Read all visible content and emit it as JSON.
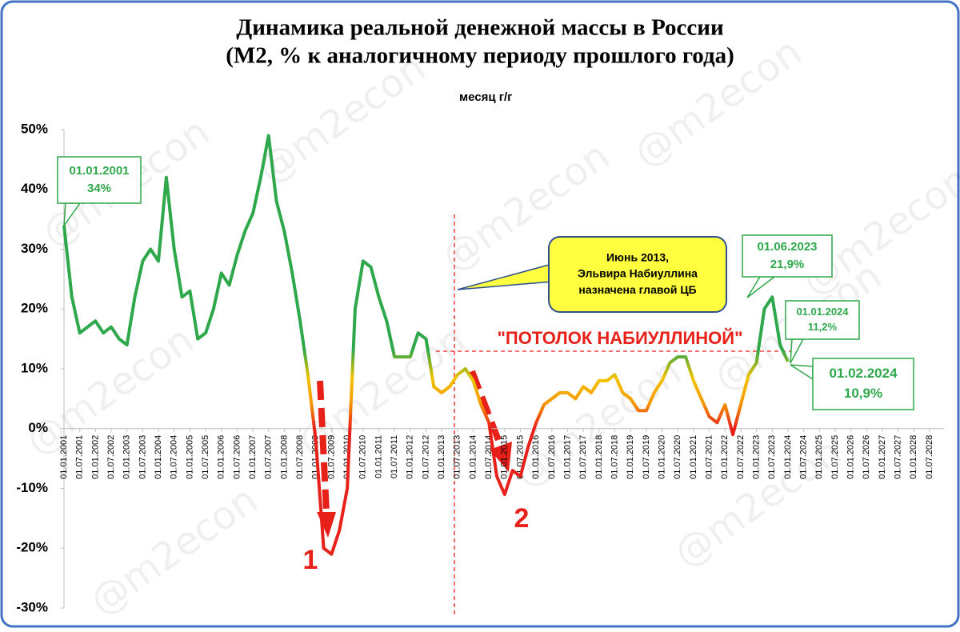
{
  "chart_data": {
    "type": "line",
    "title": [
      "Динамика реальной денежной массы в России",
      "(М2, % к аналогичному периоду прошлого года)"
    ],
    "watermark": "@m2econ",
    "categories": [
      "01.01.2001",
      null,
      "01.07.2001",
      null,
      "01.01.2002",
      null,
      "01.07.2002",
      null,
      "01.01.2003",
      null,
      "01.07.2003",
      null,
      "01.01.2004",
      null,
      "01.07.2004",
      null,
      "01.01.2005",
      null,
      "01.07.2005",
      null,
      "01.01.2006",
      null,
      "01.07.2006",
      null,
      "01.01.2007",
      null,
      "01.07.2007",
      null,
      "01.01.2008",
      null,
      "01.07.2008",
      null,
      "01.01.2009",
      null,
      "01.07.2009",
      null,
      "01.01.2010",
      null,
      "01.07.2010",
      null,
      "01.01.2011",
      null,
      "01.07.2011",
      null,
      "01.01.2012",
      null,
      "01.07.2012",
      null,
      "01.01.2013",
      null,
      "01.07.2013",
      null,
      "01.01.2014",
      null,
      "01.07.2014",
      null,
      "01.01.2015",
      null,
      "01.07.2015",
      null,
      "01.01.2016",
      null,
      "01.07.2016",
      null,
      "01.01.2017",
      null,
      "01.07.2017",
      null,
      "01.01.2018",
      null,
      "01.07.2018",
      null,
      "01.01.2019",
      null,
      "01.07.2019",
      null,
      "01.01.2020",
      null,
      "01.07.2020",
      null,
      "01.01.2021",
      null,
      "01.07.2021",
      null,
      "01.01.2022",
      null,
      "01.07.2022",
      null,
      "01.01.2023",
      null,
      "01.07.2023",
      null,
      "01.01.2024",
      null,
      "01.07.2024",
      null,
      "01.01.2025",
      null,
      "01.07.2025",
      null,
      "01.01.2026",
      null,
      "01.07.2026",
      null,
      "01.01.2027",
      null,
      "01.07.2027",
      null,
      "01.01.2028",
      null,
      "01.07.2028",
      null
    ],
    "series": [
      {
        "name": "месяц г/г",
        "values": [
          34,
          22,
          16,
          17,
          18,
          16,
          17,
          15,
          14,
          22,
          28,
          30,
          28,
          42,
          30,
          22,
          23,
          15,
          16,
          20,
          26,
          24,
          29,
          33,
          36,
          42,
          49,
          38,
          33,
          26,
          18,
          9,
          -2,
          -20,
          -21,
          -17,
          -10,
          20,
          28,
          27,
          22,
          18,
          12,
          12,
          12,
          16,
          15,
          7,
          6,
          7,
          9,
          10,
          8,
          4,
          1,
          -8,
          -11,
          -7,
          -8,
          -3,
          1,
          4,
          5,
          6,
          6,
          5,
          7,
          6,
          8,
          8,
          9,
          6,
          5,
          3,
          3,
          6,
          8,
          11,
          12,
          12,
          8,
          5,
          2,
          1,
          4,
          -1,
          4,
          9,
          11,
          20,
          22,
          14,
          11.2,
          null,
          null,
          null,
          null,
          null,
          null,
          null,
          null,
          null,
          null,
          null,
          null,
          null,
          null,
          null,
          null,
          null,
          null,
          null
        ]
      }
    ],
    "ylim": [
      -30,
      50
    ],
    "yticks": [
      {
        "value": -30,
        "label": "-30%"
      },
      {
        "value": -20,
        "label": "-20%"
      },
      {
        "value": -10,
        "label": "-10%"
      },
      {
        "value": 0,
        "label": "0%"
      },
      {
        "value": 10,
        "label": "10%"
      },
      {
        "value": 20,
        "label": "20%"
      },
      {
        "value": 30,
        "label": "30%"
      },
      {
        "value": 40,
        "label": "40%"
      },
      {
        "value": 50,
        "label": "50%"
      }
    ],
    "grid": false,
    "legend": "top",
    "annotations": [
      {
        "lines": [
          "01.01.2001",
          "34%"
        ]
      },
      {
        "lines": [
          "01.06.2023",
          "21,9%"
        ]
      },
      {
        "lines": [
          "01.01.2024",
          "11,2%"
        ]
      },
      {
        "lines": [
          "01.02.2024",
          "10,9%"
        ]
      },
      {
        "lines": [
          "Июнь 2013,",
          "Эльвира  Набиуллина",
          "назначена главой ЦБ"
        ]
      },
      {
        "lines": [
          "\"ПОТОЛОК НАБИУЛЛИНОЙ\""
        ]
      },
      {
        "lines": [
          "1"
        ]
      },
      {
        "lines": [
          "2"
        ]
      }
    ]
  }
}
